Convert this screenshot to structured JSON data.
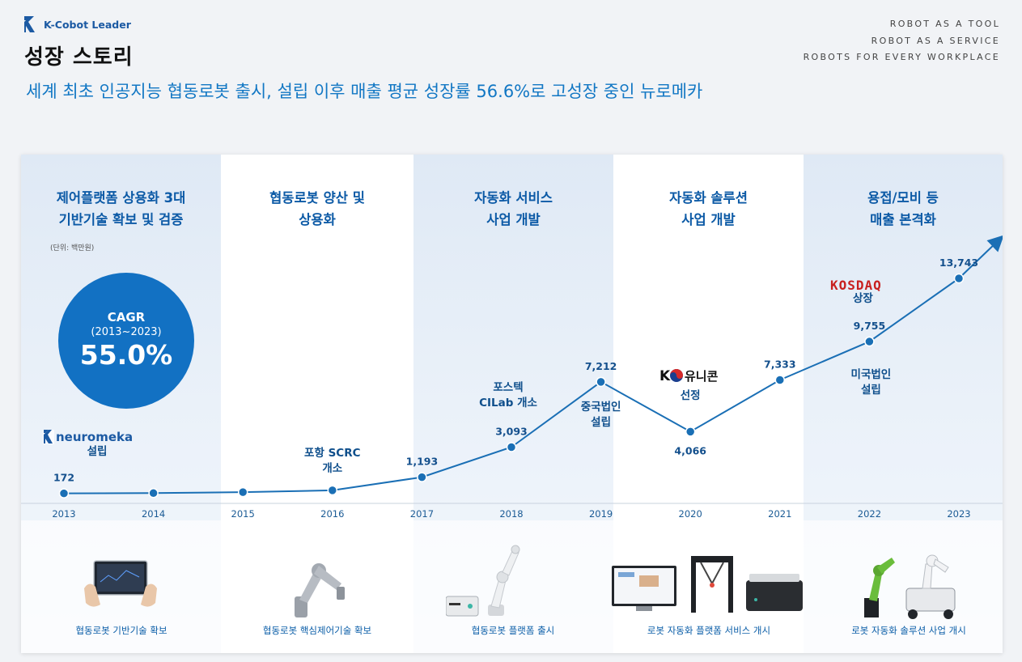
{
  "header": {
    "brand_name": "K-Cobot Leader",
    "page_title": "성장 스토리",
    "subtitle": "세계 최초 인공지능 협동로봇 출시, 설립 이후 매출 평균 성장률 56.6%로  고성장 중인 뉴로메카",
    "taglines": [
      "ROBOT AS A TOOL",
      "ROBOT AS A SERVICE",
      "ROBOTS FOR EVERY WORKPLACE"
    ]
  },
  "eras": [
    {
      "title": "제어플랫폼 상용화 3대\n기반기술 확보 및 검증",
      "footer": "협동로봇 기반기술 확보"
    },
    {
      "title": "협동로봇 양산 및\n상용화",
      "footer": "협동로봇 핵심제어기술 확보"
    },
    {
      "title": "자동화 서비스\n사업 개발",
      "footer": "협동로봇 플랫폼 출시"
    },
    {
      "title": "자동화 솔루션\n사업 개발",
      "footer": "로봇 자동화 플랫폼 서비스 개시"
    },
    {
      "title": "용접/모비 등\n매출 본격화",
      "footer": "로봇 자동화 솔루션 사업 개시"
    }
  ],
  "unit_note": "(단위: 백만원)",
  "cagr": {
    "label": "CAGR",
    "range": "(2013~2023)",
    "value": "55.0%"
  },
  "colors": {
    "accent": "#1271c3",
    "line": "#1a6fb5",
    "title_blue": "#0c5aa6",
    "kosdaq_red": "#c8201f"
  },
  "chart_data": {
    "type": "line",
    "title": "",
    "unit": "백만원",
    "x": [
      "2013",
      "2014",
      "2015",
      "2016",
      "2017",
      "2018",
      "2019",
      "2020",
      "2021",
      "2022",
      "2023"
    ],
    "values": [
      172,
      null,
      null,
      null,
      1193,
      3093,
      7212,
      4066,
      7333,
      9755,
      13743
    ],
    "labels": [
      "172",
      "",
      "",
      "",
      "1,193",
      "3,093",
      "7,212",
      "4,066",
      "7,333",
      "9,755",
      "13,743"
    ],
    "label_below": [
      false,
      false,
      false,
      false,
      false,
      false,
      false,
      true,
      false,
      false,
      false
    ],
    "annotations": [
      {
        "text": "설립",
        "year": "2013"
      },
      {
        "text": "포항 SCRC\n개소",
        "year": "2016"
      },
      {
        "text": "포스텍\nCILab 개소",
        "year": "2018"
      },
      {
        "text": "중국법인\n설립",
        "year": "2019"
      },
      {
        "text": "선정",
        "year": "2020"
      },
      {
        "text": "미국법인\n설립",
        "year": "2022"
      },
      {
        "text": "상장",
        "year": "2022"
      }
    ],
    "logos": {
      "neuromeka": "neuromeka",
      "k_unicorn": "유니콘",
      "kosdaq": "KOSDAQ"
    }
  }
}
